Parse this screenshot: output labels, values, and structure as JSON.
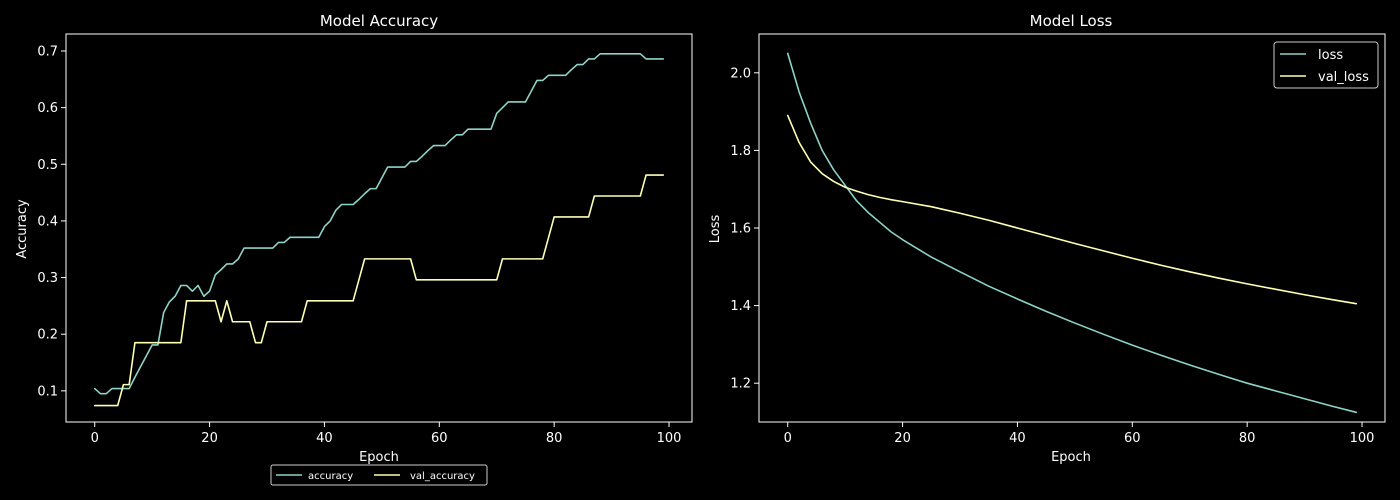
{
  "chart_data": [
    {
      "type": "line",
      "title": "Model Accuracy",
      "xlabel": "Epoch",
      "ylabel": "Accuracy",
      "xlim": [
        -5,
        104
      ],
      "ylim": [
        0.045,
        0.73
      ],
      "xticks": [
        0,
        20,
        40,
        60,
        80,
        100
      ],
      "yticks": [
        0.1,
        0.2,
        0.3,
        0.4,
        0.5,
        0.6,
        0.7
      ],
      "grid": false,
      "legend_location": "below center",
      "series": [
        {
          "name": "accuracy",
          "color": "#8dd3c7",
          "x": [
            0,
            1,
            2,
            3,
            4,
            5,
            6,
            7,
            8,
            9,
            10,
            11,
            12,
            13,
            14,
            15,
            16,
            17,
            18,
            19,
            20,
            21,
            22,
            23,
            24,
            25,
            26,
            27,
            28,
            29,
            30,
            31,
            32,
            33,
            34,
            35,
            36,
            37,
            38,
            39,
            40,
            41,
            42,
            43,
            44,
            45,
            46,
            47,
            48,
            49,
            50,
            51,
            52,
            53,
            54,
            55,
            56,
            57,
            58,
            59,
            60,
            61,
            62,
            63,
            64,
            65,
            66,
            67,
            68,
            69,
            70,
            71,
            72,
            73,
            74,
            75,
            76,
            77,
            78,
            79,
            80,
            81,
            82,
            83,
            84,
            85,
            86,
            87,
            88,
            89,
            90,
            91,
            92,
            93,
            94,
            95,
            96,
            97,
            98,
            99
          ],
          "values": [
            0.104,
            0.095,
            0.095,
            0.104,
            0.104,
            0.104,
            0.104,
            0.124,
            0.143,
            0.162,
            0.181,
            0.181,
            0.238,
            0.257,
            0.267,
            0.286,
            0.286,
            0.276,
            0.286,
            0.267,
            0.276,
            0.305,
            0.314,
            0.324,
            0.324,
            0.333,
            0.352,
            0.352,
            0.352,
            0.352,
            0.352,
            0.352,
            0.362,
            0.362,
            0.371,
            0.371,
            0.371,
            0.371,
            0.371,
            0.371,
            0.39,
            0.4,
            0.419,
            0.429,
            0.429,
            0.429,
            0.438,
            0.448,
            0.457,
            0.457,
            0.476,
            0.495,
            0.495,
            0.495,
            0.495,
            0.505,
            0.505,
            0.514,
            0.524,
            0.533,
            0.533,
            0.533,
            0.543,
            0.552,
            0.552,
            0.562,
            0.562,
            0.562,
            0.562,
            0.562,
            0.59,
            0.6,
            0.61,
            0.61,
            0.61,
            0.61,
            0.629,
            0.648,
            0.648,
            0.657,
            0.657,
            0.657,
            0.657,
            0.667,
            0.676,
            0.676,
            0.686,
            0.686,
            0.695,
            0.695,
            0.695,
            0.695,
            0.695,
            0.695,
            0.695,
            0.695,
            0.686,
            0.686,
            0.686,
            0.686
          ]
        },
        {
          "name": "val_accuracy",
          "color": "#ffffb3",
          "x": [
            0,
            1,
            2,
            3,
            4,
            5,
            6,
            7,
            8,
            9,
            10,
            11,
            12,
            13,
            14,
            15,
            16,
            17,
            18,
            19,
            20,
            21,
            22,
            23,
            24,
            25,
            26,
            27,
            28,
            29,
            30,
            31,
            32,
            33,
            34,
            35,
            36,
            37,
            38,
            39,
            40,
            41,
            42,
            43,
            44,
            45,
            46,
            47,
            48,
            49,
            50,
            51,
            52,
            53,
            54,
            55,
            56,
            57,
            58,
            59,
            60,
            61,
            62,
            63,
            64,
            65,
            66,
            67,
            68,
            69,
            70,
            71,
            72,
            73,
            74,
            75,
            76,
            77,
            78,
            79,
            80,
            81,
            82,
            83,
            84,
            85,
            86,
            87,
            88,
            89,
            90,
            91,
            92,
            93,
            94,
            95,
            96,
            97,
            98,
            99
          ],
          "values": [
            0.074,
            0.074,
            0.074,
            0.074,
            0.074,
            0.111,
            0.111,
            0.185,
            0.185,
            0.185,
            0.185,
            0.185,
            0.185,
            0.185,
            0.185,
            0.185,
            0.259,
            0.259,
            0.259,
            0.259,
            0.259,
            0.259,
            0.222,
            0.259,
            0.222,
            0.222,
            0.222,
            0.222,
            0.185,
            0.185,
            0.222,
            0.222,
            0.222,
            0.222,
            0.222,
            0.222,
            0.222,
            0.259,
            0.259,
            0.259,
            0.259,
            0.259,
            0.259,
            0.259,
            0.259,
            0.259,
            0.296,
            0.333,
            0.333,
            0.333,
            0.333,
            0.333,
            0.333,
            0.333,
            0.333,
            0.333,
            0.296,
            0.296,
            0.296,
            0.296,
            0.296,
            0.296,
            0.296,
            0.296,
            0.296,
            0.296,
            0.296,
            0.296,
            0.296,
            0.296,
            0.296,
            0.333,
            0.333,
            0.333,
            0.333,
            0.333,
            0.333,
            0.333,
            0.333,
            0.37,
            0.407,
            0.407,
            0.407,
            0.407,
            0.407,
            0.407,
            0.407,
            0.444,
            0.444,
            0.444,
            0.444,
            0.444,
            0.444,
            0.444,
            0.444,
            0.444,
            0.481,
            0.481,
            0.481,
            0.481
          ]
        }
      ]
    },
    {
      "type": "line",
      "title": "Model Loss",
      "xlabel": "Epoch",
      "ylabel": "Loss",
      "xlim": [
        -5,
        104
      ],
      "ylim": [
        1.1,
        2.1
      ],
      "xticks": [
        0,
        20,
        40,
        60,
        80,
        100
      ],
      "yticks": [
        1.2,
        1.4,
        1.6,
        1.8,
        2.0
      ],
      "grid": false,
      "legend_location": "upper right",
      "series": [
        {
          "name": "loss",
          "color": "#8dd3c7",
          "x": [
            0,
            2,
            4,
            6,
            8,
            10,
            12,
            14,
            16,
            18,
            20,
            25,
            30,
            35,
            40,
            45,
            50,
            55,
            60,
            65,
            70,
            75,
            80,
            85,
            90,
            95,
            99
          ],
          "values": [
            2.05,
            1.95,
            1.87,
            1.8,
            1.75,
            1.71,
            1.67,
            1.64,
            1.615,
            1.59,
            1.57,
            1.525,
            1.487,
            1.45,
            1.417,
            1.385,
            1.355,
            1.326,
            1.298,
            1.272,
            1.247,
            1.223,
            1.2,
            1.18,
            1.16,
            1.14,
            1.125
          ]
        },
        {
          "name": "val_loss",
          "color": "#ffffb3",
          "x": [
            0,
            2,
            4,
            6,
            8,
            10,
            12,
            14,
            16,
            18,
            20,
            25,
            30,
            35,
            40,
            45,
            50,
            55,
            60,
            65,
            70,
            75,
            80,
            85,
            90,
            95,
            99
          ],
          "values": [
            1.89,
            1.82,
            1.77,
            1.74,
            1.72,
            1.705,
            1.695,
            1.686,
            1.679,
            1.673,
            1.668,
            1.655,
            1.638,
            1.62,
            1.6,
            1.58,
            1.56,
            1.541,
            1.522,
            1.504,
            1.487,
            1.471,
            1.456,
            1.442,
            1.428,
            1.415,
            1.405
          ]
        }
      ]
    }
  ]
}
